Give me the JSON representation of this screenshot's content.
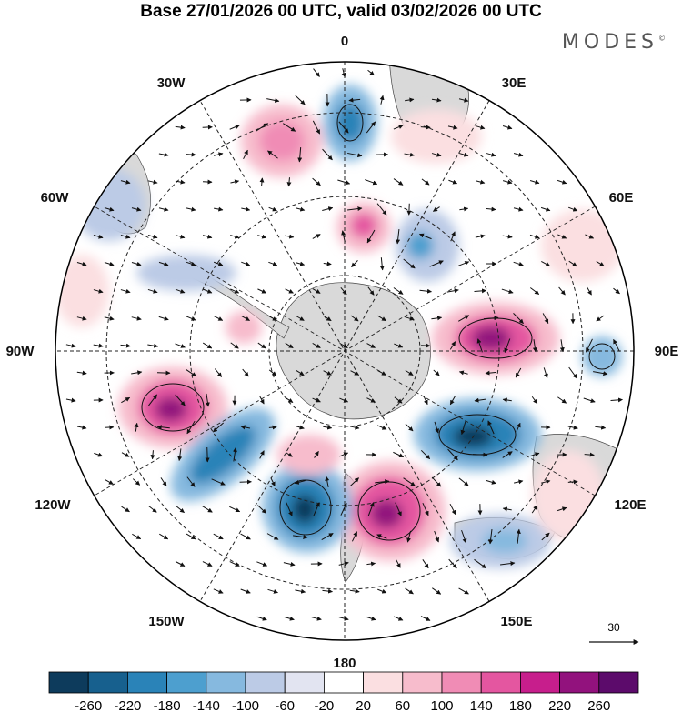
{
  "title": "Base 27/01/2026 00 UTC, valid 03/02/2026 00 UTC",
  "brand": "MODES",
  "brand_mark": "©",
  "projection": "south-polar-stereographic",
  "longitude_labels": [
    {
      "id": "lon-0",
      "text": "0"
    },
    {
      "id": "lon-30e",
      "text": "30E"
    },
    {
      "id": "lon-60e",
      "text": "60E"
    },
    {
      "id": "lon-90e",
      "text": "90E"
    },
    {
      "id": "lon-120e",
      "text": "120E"
    },
    {
      "id": "lon-150e",
      "text": "150E"
    },
    {
      "id": "lon-180",
      "text": "180"
    },
    {
      "id": "lon-150w",
      "text": "150W"
    },
    {
      "id": "lon-120w",
      "text": "120W"
    },
    {
      "id": "lon-90w",
      "text": "90W"
    },
    {
      "id": "lon-60w",
      "text": "60W"
    },
    {
      "id": "lon-30w",
      "text": "30W"
    }
  ],
  "vector_reference": {
    "label": "30"
  },
  "colorbar": {
    "labels": [
      "-260",
      "-220",
      "-180",
      "-140",
      "-100",
      "-60",
      "-20",
      "20",
      "60",
      "100",
      "140",
      "180",
      "220",
      "260"
    ],
    "colors": [
      "#0d3b5c",
      "#17608e",
      "#2a83b8",
      "#4d9fcf",
      "#86b9df",
      "#bccbe6",
      "#e2e4f1",
      "#ffffff",
      "#fbdfe1",
      "#f7bccc",
      "#f08cb5",
      "#e456a0",
      "#c71e8c",
      "#92127d",
      "#5c0b6b"
    ]
  },
  "colors": {
    "land": "#d8d8d8",
    "grid": "#222222",
    "arrow": "#111111"
  }
}
